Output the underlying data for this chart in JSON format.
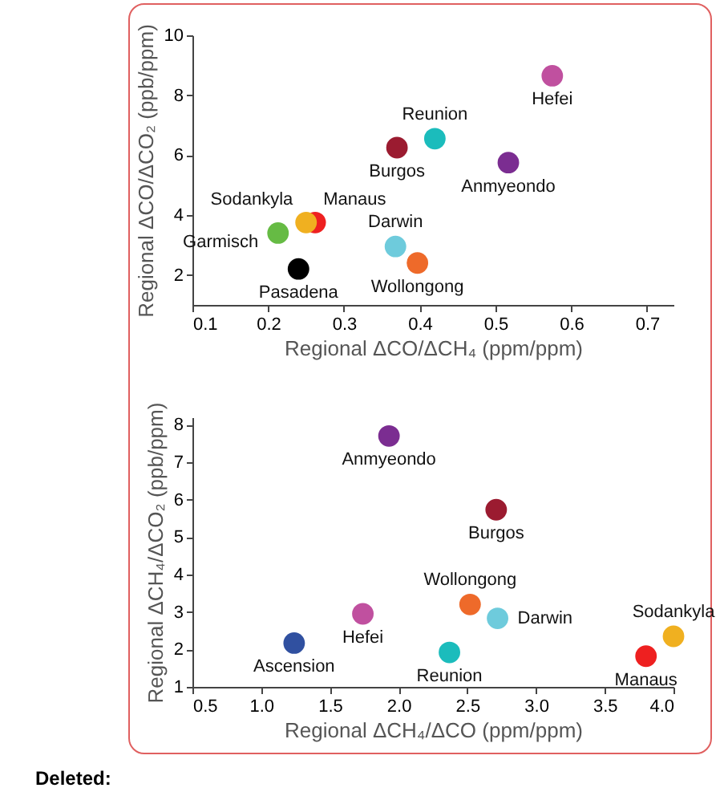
{
  "chart_data": [
    {
      "type": "scatter",
      "xlabel": "Regional ΔCO/ΔCH₄ (ppm/ppm)",
      "ylabel": "Regional ΔCO/ΔCO₂ (ppb/ppm)",
      "xlim": [
        0.1,
        0.735
      ],
      "ylim": [
        1,
        10
      ],
      "xticks": [
        0.1,
        0.2,
        0.3,
        0.4,
        0.5,
        0.6,
        0.7
      ],
      "yticks": [
        2,
        4,
        6,
        8,
        10
      ],
      "marker": "circle",
      "series": [
        {
          "name": "Hefei",
          "color": "#c0509f",
          "x": [
            0.575
          ],
          "values": [
            8.65
          ]
        },
        {
          "name": "Reunion",
          "color": "#1bbcbc",
          "x": [
            0.42
          ],
          "values": [
            6.55
          ]
        },
        {
          "name": "Burgos",
          "color": "#9b1b30",
          "x": [
            0.37
          ],
          "values": [
            6.25
          ]
        },
        {
          "name": "Anmyeondo",
          "color": "#7b2d91",
          "x": [
            0.517
          ],
          "values": [
            5.75
          ]
        },
        {
          "name": "Manaus",
          "color": "#ee2020",
          "x": [
            0.262
          ],
          "values": [
            3.75
          ]
        },
        {
          "name": "Sodankyla",
          "color": "#f0b020",
          "x": [
            0.25
          ],
          "values": [
            3.75
          ]
        },
        {
          "name": "Garmisch",
          "color": "#66bb44",
          "x": [
            0.213
          ],
          "values": [
            3.4
          ]
        },
        {
          "name": "Darwin",
          "color": "#6ecbdc",
          "x": [
            0.368
          ],
          "values": [
            2.95
          ]
        },
        {
          "name": "Wollongong",
          "color": "#ee6a2a",
          "x": [
            0.397
          ],
          "values": [
            2.4
          ]
        },
        {
          "name": "Pasadena",
          "color": "#000000",
          "x": [
            0.24
          ],
          "values": [
            2.2
          ]
        }
      ]
    },
    {
      "type": "scatter",
      "xlabel": "Regional ΔCH₄/ΔCO (ppm/ppm)",
      "ylabel": "Regional ΔCH₄/ΔCO₂ (ppb/ppm)",
      "xlim": [
        0.5,
        4
      ],
      "ylim": [
        1,
        8.2
      ],
      "xticks": [
        0.5,
        {
          "value": 1,
          "label": "1.0"
        },
        1.5,
        {
          "value": 2,
          "label": "2.0"
        },
        2.5,
        {
          "value": 3,
          "label": "3.0"
        },
        3.5,
        {
          "value": 4,
          "label": "4.0"
        }
      ],
      "yticks": [
        1,
        2,
        3,
        4,
        5,
        6,
        7,
        8
      ],
      "marker": "circle",
      "annotations": [
        "Deleted:"
      ],
      "series": [
        {
          "name": "Anmyeondo",
          "color": "#7b2d91",
          "x": [
            1.93
          ],
          "values": [
            7.7
          ]
        },
        {
          "name": "Burgos",
          "color": "#9b1b30",
          "x": [
            2.71
          ],
          "values": [
            5.73
          ]
        },
        {
          "name": "Wollongong",
          "color": "#ee6a2a",
          "x": [
            2.52
          ],
          "values": [
            3.2
          ]
        },
        {
          "name": "Darwin",
          "color": "#6ecbdc",
          "x": [
            2.72
          ],
          "values": [
            2.83
          ]
        },
        {
          "name": "Hefei",
          "color": "#c0509f",
          "x": [
            1.74
          ],
          "values": [
            2.95
          ]
        },
        {
          "name": "Ascension",
          "color": "#3050a0",
          "x": [
            1.24
          ],
          "values": [
            2.17
          ]
        },
        {
          "name": "Reunion",
          "color": "#1bbcbc",
          "x": [
            2.37
          ],
          "values": [
            1.92
          ]
        },
        {
          "name": "Manaus",
          "color": "#ee2020",
          "x": [
            3.8
          ],
          "values": [
            1.82
          ]
        },
        {
          "name": "Sodankyla",
          "color": "#f0b020",
          "x": [
            4.0
          ],
          "values": [
            2.35
          ]
        }
      ]
    }
  ]
}
